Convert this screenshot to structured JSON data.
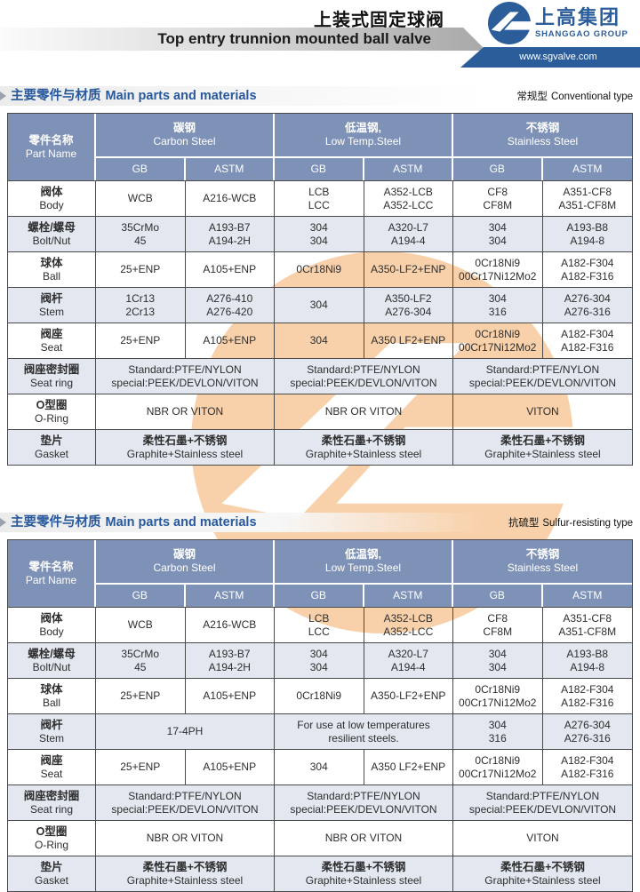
{
  "header": {
    "title_zh": "上装式固定球阀",
    "title_en": "Top entry trunnion mounted ball valve",
    "logo": {
      "name_zh": "上高集团",
      "name_en": "SHANGGAO GROUP",
      "website": "www.sgvalve.com"
    }
  },
  "colors": {
    "brand_blue": "#2b5d9b",
    "table_header_blue": "#7e91b7",
    "row_stripe": "#e2e7f0",
    "watermark_orange": "#ee8822",
    "section_title_blue": "#27599c"
  },
  "sections": [
    {
      "title_zh": "主要零件与材质",
      "title_en": "Main parts and materials",
      "type_label_zh": "常规型",
      "type_label_en": "Conventional type",
      "table": {
        "part_name": {
          "zh": "零件名称",
          "en": "Part Name"
        },
        "groups": [
          {
            "zh": "碳钢",
            "en": "Carbon Steel"
          },
          {
            "zh": "低温钢,",
            "en": "Low Temp.Steel"
          },
          {
            "zh": "不锈钢",
            "en": "Stainless Steel"
          }
        ],
        "sub_headers": [
          "GB",
          "ASTM",
          "GB",
          "ASTM",
          "GB",
          "ASTM"
        ],
        "rows": [
          {
            "part": [
              "阀体",
              "Body"
            ],
            "cells": [
              {
                "lines": [
                  "WCB"
                ]
              },
              {
                "lines": [
                  "A216-WCB"
                ]
              },
              {
                "lines": [
                  "LCB",
                  "LCC"
                ]
              },
              {
                "lines": [
                  "A352-LCB",
                  "A352-LCC"
                ]
              },
              {
                "lines": [
                  "CF8",
                  "CF8M"
                ]
              },
              {
                "lines": [
                  "A351-CF8",
                  "A351-CF8M"
                ]
              }
            ]
          },
          {
            "part": [
              "螺栓/螺母",
              "Bolt/Nut"
            ],
            "cells": [
              {
                "lines": [
                  "35CrMo",
                  "45"
                ]
              },
              {
                "lines": [
                  "A193-B7",
                  "A194-2H"
                ]
              },
              {
                "lines": [
                  "304",
                  "304"
                ]
              },
              {
                "lines": [
                  "A320-L7",
                  "A194-4"
                ]
              },
              {
                "lines": [
                  "304",
                  "304"
                ]
              },
              {
                "lines": [
                  "A193-B8",
                  "A194-8"
                ]
              }
            ]
          },
          {
            "part": [
              "球体",
              "Ball"
            ],
            "cells": [
              {
                "lines": [
                  "25+ENP"
                ]
              },
              {
                "lines": [
                  "A105+ENP"
                ]
              },
              {
                "lines": [
                  "0Cr18Ni9"
                ]
              },
              {
                "lines": [
                  "A350-LF2+ENP"
                ]
              },
              {
                "lines": [
                  "0Cr18Ni9",
                  "00Cr17Ni12Mo2"
                ]
              },
              {
                "lines": [
                  "A182-F304",
                  "A182-F316"
                ]
              }
            ]
          },
          {
            "part": [
              "阀杆",
              "Stem"
            ],
            "cells": [
              {
                "lines": [
                  "1Cr13",
                  "2Cr13"
                ]
              },
              {
                "lines": [
                  "A276-410",
                  "A276-420"
                ]
              },
              {
                "lines": [
                  "304"
                ]
              },
              {
                "lines": [
                  "A350-LF2",
                  "A276-304"
                ]
              },
              {
                "lines": [
                  "304",
                  "316"
                ]
              },
              {
                "lines": [
                  "A276-304",
                  "A276-316"
                ]
              }
            ]
          },
          {
            "part": [
              "阀座",
              "Seat"
            ],
            "cells": [
              {
                "lines": [
                  "25+ENP"
                ]
              },
              {
                "lines": [
                  "A105+ENP"
                ]
              },
              {
                "lines": [
                  "304"
                ]
              },
              {
                "lines": [
                  "A350 LF2+ENP"
                ]
              },
              {
                "lines": [
                  "0Cr18Ni9",
                  "00Cr17Ni12Mo2"
                ]
              },
              {
                "lines": [
                  "A182-F304",
                  "A182-F316"
                ]
              }
            ]
          },
          {
            "part": [
              "阀座密封圈",
              "Seat ring"
            ],
            "cells": [
              {
                "span": 2,
                "lines": [
                  "Standard:PTFE/NYLON",
                  "special:PEEK/DEVLON/VITON"
                ]
              },
              {
                "span": 2,
                "lines": [
                  "Standard:PTFE/NYLON",
                  "special:PEEK/DEVLON/VITON"
                ]
              },
              {
                "span": 2,
                "lines": [
                  "Standard:PTFE/NYLON",
                  "special:PEEK/DEVLON/VITON"
                ]
              }
            ]
          },
          {
            "part": [
              "O型圈",
              "O-Ring"
            ],
            "cells": [
              {
                "span": 2,
                "lines": [
                  "NBR OR VITON"
                ]
              },
              {
                "span": 2,
                "lines": [
                  "NBR OR VITON"
                ]
              },
              {
                "span": 2,
                "lines": [
                  "VITON"
                ]
              }
            ]
          },
          {
            "part": [
              "垫片",
              "Gasket"
            ],
            "cells": [
              {
                "span": 2,
                "lines": [
                  "柔性石墨+不锈钢",
                  "Graphite+Stainless steel"
                ]
              },
              {
                "span": 2,
                "lines": [
                  "柔性石墨+不锈钢",
                  "Graphite+Stainless steel"
                ]
              },
              {
                "span": 2,
                "lines": [
                  "柔性石墨+不锈钢",
                  "Graphite+Stainless steel"
                ]
              }
            ]
          }
        ]
      }
    },
    {
      "title_zh": "主要零件与材质",
      "title_en": "Main parts and materials",
      "type_label_zh": "抗硫型",
      "type_label_en": "Sulfur-resisting type",
      "table": {
        "part_name": {
          "zh": "零件名称",
          "en": "Part Name"
        },
        "groups": [
          {
            "zh": "碳钢",
            "en": "Carbon Steel"
          },
          {
            "zh": "低温钢,",
            "en": "Low Temp.Steel"
          },
          {
            "zh": "不锈钢",
            "en": "Stainless Steel"
          }
        ],
        "sub_headers": [
          "GB",
          "ASTM",
          "GB",
          "ASTM",
          "GB",
          "ASTM"
        ],
        "rows": [
          {
            "part": [
              "阀体",
              "Body"
            ],
            "cells": [
              {
                "lines": [
                  "WCB"
                ]
              },
              {
                "lines": [
                  "A216-WCB"
                ]
              },
              {
                "lines": [
                  "LCB",
                  "LCC"
                ]
              },
              {
                "lines": [
                  "A352-LCB",
                  "A352-LCC"
                ]
              },
              {
                "lines": [
                  "CF8",
                  "CF8M"
                ]
              },
              {
                "lines": [
                  "A351-CF8",
                  "A351-CF8M"
                ]
              }
            ]
          },
          {
            "part": [
              "螺栓/螺母",
              "Bolt/Nut"
            ],
            "cells": [
              {
                "lines": [
                  "35CrMo",
                  "45"
                ]
              },
              {
                "lines": [
                  "A193-B7",
                  "A194-2H"
                ]
              },
              {
                "lines": [
                  "304",
                  "304"
                ]
              },
              {
                "lines": [
                  "A320-L7",
                  "A194-4"
                ]
              },
              {
                "lines": [
                  "304",
                  "304"
                ]
              },
              {
                "lines": [
                  "A193-B8",
                  "A194-8"
                ]
              }
            ]
          },
          {
            "part": [
              "球体",
              "Ball"
            ],
            "cells": [
              {
                "lines": [
                  "25+ENP"
                ]
              },
              {
                "lines": [
                  "A105+ENP"
                ]
              },
              {
                "lines": [
                  "0Cr18Ni9"
                ]
              },
              {
                "lines": [
                  "A350-LF2+ENP"
                ]
              },
              {
                "lines": [
                  "0Cr18Ni9",
                  "00Cr17Ni12Mo2"
                ]
              },
              {
                "lines": [
                  "A182-F304",
                  "A182-F316"
                ]
              }
            ]
          },
          {
            "part": [
              "阀杆",
              "Stem"
            ],
            "cells": [
              {
                "span": 2,
                "lines": [
                  "17-4PH"
                ]
              },
              {
                "span": 2,
                "lines": [
                  "For use at low temperatures",
                  "resilient steels."
                ]
              },
              {
                "lines": [
                  "304",
                  "316"
                ]
              },
              {
                "lines": [
                  "A276-304",
                  "A276-316"
                ]
              }
            ]
          },
          {
            "part": [
              "阀座",
              "Seat"
            ],
            "cells": [
              {
                "lines": [
                  "25+ENP"
                ]
              },
              {
                "lines": [
                  "A105+ENP"
                ]
              },
              {
                "lines": [
                  "304"
                ]
              },
              {
                "lines": [
                  "A350 LF2+ENP"
                ]
              },
              {
                "lines": [
                  "0Cr18Ni9",
                  "00Cr17Ni12Mo2"
                ]
              },
              {
                "lines": [
                  "A182-F304",
                  "A182-F316"
                ]
              }
            ]
          },
          {
            "part": [
              "阀座密封圈",
              "Seat ring"
            ],
            "cells": [
              {
                "span": 2,
                "lines": [
                  "Standard:PTFE/NYLON",
                  "special:PEEK/DEVLON/VITON"
                ]
              },
              {
                "span": 2,
                "lines": [
                  "Standard:PTFE/NYLON",
                  "special:PEEK/DEVLON/VITON"
                ]
              },
              {
                "span": 2,
                "lines": [
                  "Standard:PTFE/NYLON",
                  "special:PEEK/DEVLON/VITON"
                ]
              }
            ]
          },
          {
            "part": [
              "O型圈",
              "O-Ring"
            ],
            "cells": [
              {
                "span": 2,
                "lines": [
                  "NBR OR VITON"
                ]
              },
              {
                "span": 2,
                "lines": [
                  "NBR OR VITON"
                ]
              },
              {
                "span": 2,
                "lines": [
                  "VITON"
                ]
              }
            ]
          },
          {
            "part": [
              "垫片",
              "Gasket"
            ],
            "cells": [
              {
                "span": 2,
                "lines": [
                  "柔性石墨+不锈钢",
                  "Graphite+Stainless steel"
                ]
              },
              {
                "span": 2,
                "lines": [
                  "柔性石墨+不锈钢",
                  "Graphite+Stainless steel"
                ]
              },
              {
                "span": 2,
                "lines": [
                  "柔性石墨+不锈钢",
                  "Graphite+Stainless steel"
                ]
              }
            ]
          }
        ]
      }
    }
  ]
}
